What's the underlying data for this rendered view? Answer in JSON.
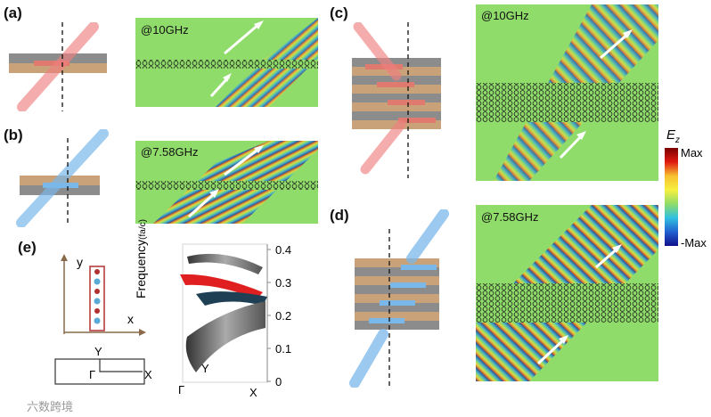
{
  "panels": {
    "a": {
      "label": "(a)",
      "freq": "@10GHz"
    },
    "b": {
      "label": "(b)",
      "freq": "@7.58GHz"
    },
    "c": {
      "label": "(c)",
      "freq": "@10GHz"
    },
    "d": {
      "label": "(d)",
      "freq": "@7.58GHz"
    },
    "e": {
      "label": "(e)"
    }
  },
  "colorbar": {
    "title": "E",
    "subscript": "z",
    "max_label": "Max",
    "min_label": "-Max"
  },
  "band_plot": {
    "axis_label": "Frequency",
    "axis_unit": "(fa/c)",
    "ticks": [
      "0.4",
      "0.3",
      "0.2",
      "0.1",
      "0"
    ],
    "k_labels": {
      "gamma": "Γ",
      "x": "X",
      "y": "Y"
    }
  },
  "unit_cell": {
    "y_label": "y",
    "x_label": "x"
  },
  "brillouin": {
    "y_label": "Y",
    "gamma_label": "Γ",
    "x_label": "X"
  },
  "watermark": "六数跨境",
  "colors": {
    "red_beam": "#f08080",
    "blue_beam": "#7ab8ea",
    "field_bg": "#8fdc6a",
    "gray_layer": "#808080",
    "tan_layer": "#c9a27a"
  }
}
